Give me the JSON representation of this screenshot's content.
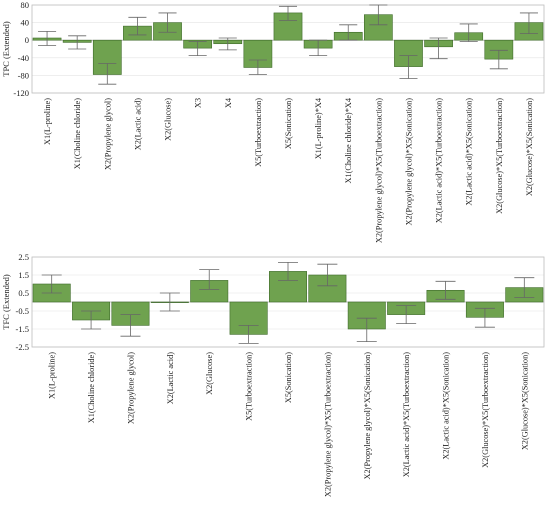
{
  "chart_data": [
    {
      "type": "bar",
      "ylabel": "TPC (Extended)",
      "ylim": [
        -120,
        80
      ],
      "yticks": [
        80,
        40,
        0,
        -40,
        -80,
        -120
      ],
      "categories": [
        "X1(L-proline)",
        "X1(Choline chloride)",
        "X2(Propylene glycol)",
        "X2(Lactic acid)",
        "X2(Glucose)",
        "X3",
        "X4",
        "X5(Turboextraction)",
        "X5(Sonication)",
        "X1(L-proline)*X4",
        "X1(Choline chloride)*X4",
        "X2(Propylene glycol)*X5(Turboextraction)",
        "X2(Propylene glycol)*X5(Sonication)",
        "X2(Lactic acid)*X5(Turboextraction)",
        "X2(Lactic acid)*X5(Sonication)",
        "X2(Glucose)*X5(Turboextraction)",
        "X2(Glucose)*X5(Sonication)"
      ],
      "values": [
        5,
        -5,
        -78,
        32,
        40,
        -18,
        -8,
        -62,
        62,
        -18,
        18,
        58,
        -60,
        -15,
        17,
        -43,
        40
      ],
      "error_low": [
        -12,
        -20,
        -100,
        12,
        18,
        -35,
        -22,
        -78,
        45,
        -35,
        0,
        35,
        -87,
        -42,
        -3,
        -65,
        15
      ],
      "error_high": [
        20,
        10,
        -53,
        52,
        62,
        -3,
        5,
        -45,
        77,
        0,
        35,
        80,
        -35,
        5,
        37,
        -23,
        62
      ],
      "grid": true,
      "legend": "none"
    },
    {
      "type": "bar",
      "ylabel": "TFC (Extended)",
      "ylim": [
        -2.5,
        2.5
      ],
      "yticks": [
        2.5,
        1.5,
        0.5,
        -0.5,
        -1.5,
        -2.5
      ],
      "categories": [
        "X1(L-proline)",
        "X1(Choline chloride)",
        "X2(Propylene glycol)",
        "X2(Lactic acid)",
        "X2(Glucose)",
        "X5(Turboextraction)",
        "X5(Sonication)",
        "X2(Propylene glycol)*X5(Turboextraction)",
        "X2(Propylene glycol)*X5(Sonication)",
        "X2(Lactic acid)*X5(Turboextraction)",
        "X2(Lactic acid)*X5(Sonication)",
        "X2(Glucose)*X5(Turboextraction)",
        "X2(Glucose)*X5(Sonication)"
      ],
      "values": [
        1.0,
        -1.0,
        -1.3,
        0,
        1.2,
        -1.8,
        1.7,
        1.5,
        -1.5,
        -0.7,
        0.65,
        -0.85,
        0.8
      ],
      "error_low": [
        0.5,
        -1.5,
        -1.9,
        -0.5,
        0.7,
        -2.3,
        1.2,
        0.9,
        -2.2,
        -1.2,
        0.15,
        -1.4,
        0.25
      ],
      "error_high": [
        1.5,
        -0.5,
        -0.7,
        0.5,
        1.8,
        -1.3,
        2.2,
        2.1,
        -0.9,
        -0.2,
        1.15,
        -0.35,
        1.35
      ],
      "grid": true,
      "legend": "none"
    }
  ]
}
